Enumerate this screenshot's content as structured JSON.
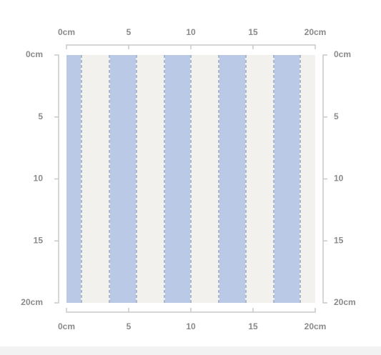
{
  "rulers": {
    "top": [
      "0cm",
      "5",
      "10",
      "15",
      "20cm"
    ],
    "bottom": [
      "0cm",
      "5",
      "10",
      "15",
      "20cm"
    ],
    "left": [
      "0cm",
      "5",
      "10",
      "15",
      "20cm"
    ],
    "right": [
      "0cm",
      "5",
      "10",
      "15",
      "20cm"
    ]
  }
}
